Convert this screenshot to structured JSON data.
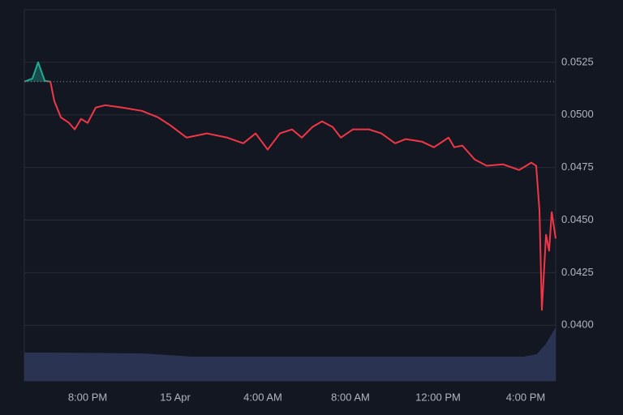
{
  "chart_data": {
    "type": "line",
    "x": [
      -6.89,
      -6.52,
      -6.26,
      -5.96,
      -5.7,
      -5.52,
      -5.22,
      -4.85,
      -4.59,
      -4.3,
      -4.0,
      -3.63,
      -3.19,
      -2.44,
      -1.52,
      -0.78,
      -0.22,
      0.52,
      1.44,
      2.37,
      3.11,
      3.67,
      4.22,
      4.78,
      5.33,
      5.78,
      6.26,
      6.7,
      7.19,
      7.56,
      8.11,
      8.85,
      9.41,
      10.04,
      10.52,
      11.26,
      11.81,
      12.48,
      12.74,
      13.11,
      13.67,
      14.22,
      14.96,
      15.7,
      16.26,
      16.48,
      16.63,
      16.74,
      16.93,
      17.07,
      17.19,
      17.37
    ],
    "values": [
      0.05158,
      0.05173,
      0.0525,
      0.05162,
      0.05158,
      0.05065,
      0.04988,
      0.04962,
      0.04931,
      0.04981,
      0.04962,
      0.05035,
      0.05046,
      0.05035,
      0.05019,
      0.04988,
      0.0495,
      0.04892,
      0.04912,
      0.04892,
      0.04865,
      0.04912,
      0.04835,
      0.04912,
      0.04931,
      0.04892,
      0.04942,
      0.04969,
      0.04942,
      0.04892,
      0.04931,
      0.04931,
      0.04912,
      0.04865,
      0.04885,
      0.04873,
      0.04846,
      0.04892,
      0.04846,
      0.04854,
      0.04788,
      0.04758,
      0.04765,
      0.04738,
      0.04773,
      0.04758,
      0.04546,
      0.04073,
      0.0443,
      0.04354,
      0.04538,
      0.04412
    ],
    "baseline": 0.05158,
    "up_color": "#22ab94",
    "down_color": "#f23645",
    "volume": {
      "x": [
        -6.89,
        -5.5,
        -1.5,
        0.8,
        15.9,
        16.5,
        16.9,
        17.37
      ],
      "values": [
        35,
        35,
        34,
        30,
        30,
        33,
        45,
        66
      ],
      "color": "#2b3352"
    },
    "xlim": [
      -6.89,
      17.37
    ],
    "xticks": [
      {
        "value": -4,
        "label": "8:00 PM"
      },
      {
        "value": 0,
        "label": "15 Apr"
      },
      {
        "value": 4,
        "label": "4:00 AM"
      },
      {
        "value": 8,
        "label": "8:00 AM"
      },
      {
        "value": 12,
        "label": "12:00 PM"
      },
      {
        "value": 16,
        "label": "4:00 PM"
      }
    ],
    "ylim": [
      0.03735,
      0.055
    ],
    "yticks": [
      {
        "value": 0.04,
        "label": "0.0400"
      },
      0.0425,
      {
        "value": 0.045,
        "label": "0.0450"
      },
      0.0475,
      {
        "value": 0.05,
        "label": "0.0500"
      },
      0.0525
    ],
    "grid": true
  }
}
